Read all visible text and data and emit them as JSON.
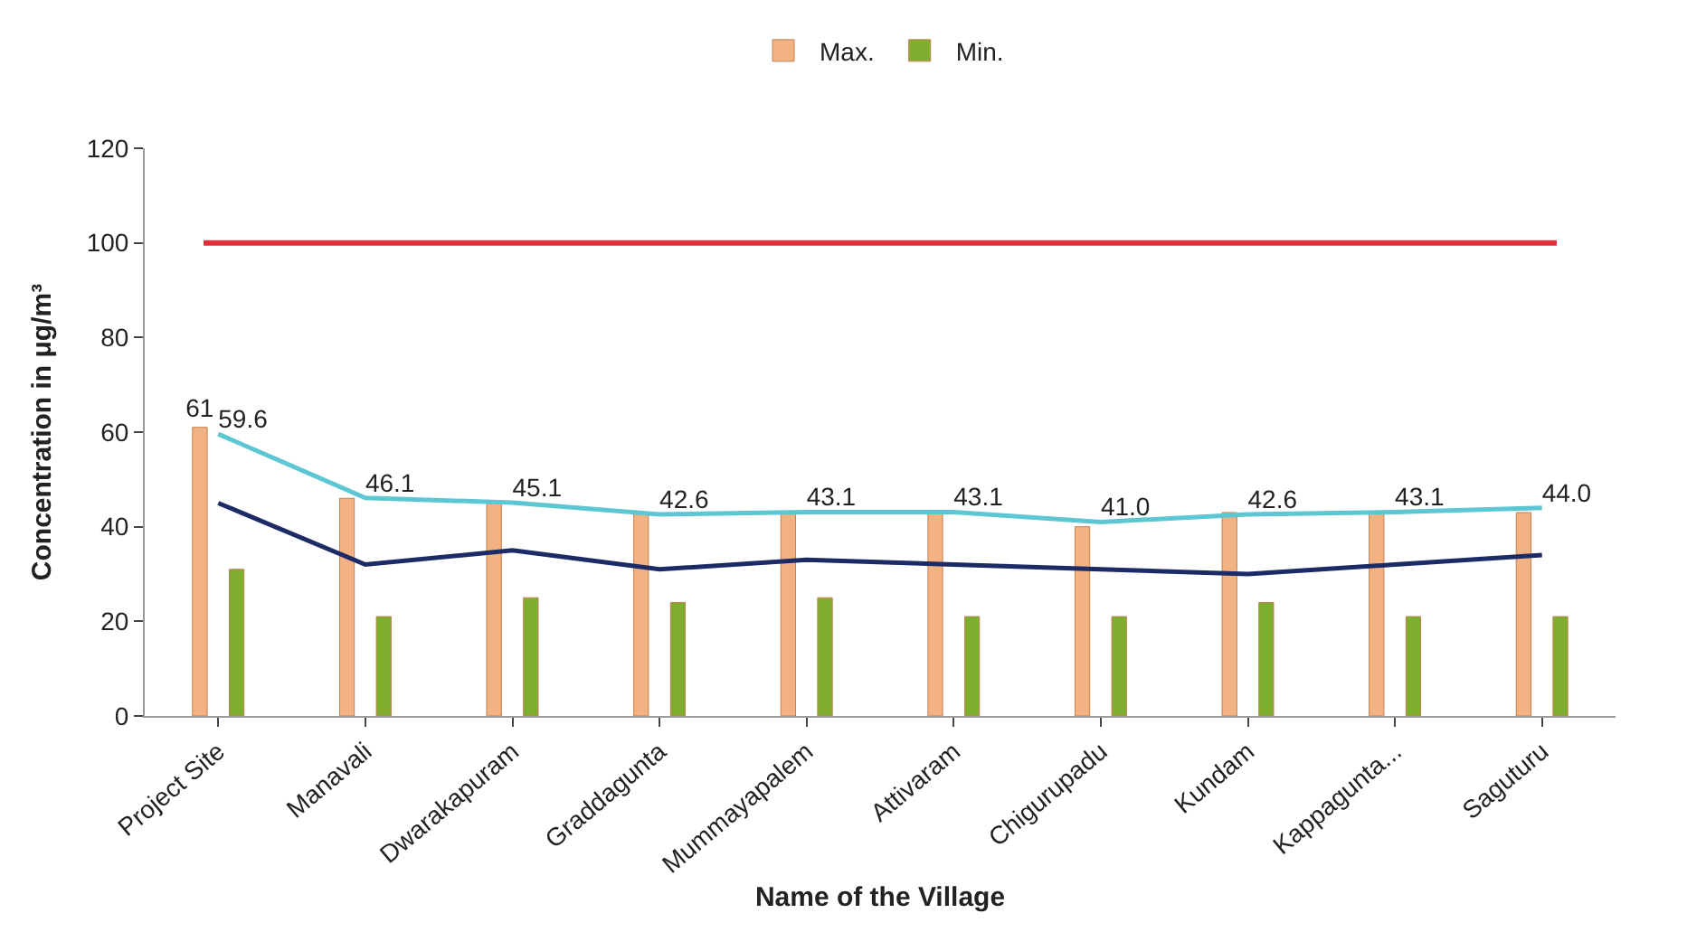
{
  "chart_data": {
    "type": "bar",
    "xlabel": "Name of the Village",
    "ylabel": "Concentration in μg/m³",
    "categories": [
      "Project Site",
      "Manavali",
      "Dwarakapuram",
      "Graddagunta",
      "Mummayapalem",
      "Attivaram",
      "Chigurupadu",
      "Kundam",
      "Kappagunta...",
      "Saguturu"
    ],
    "series": [
      {
        "name": "Max.",
        "color": "#f2b282",
        "values": [
          61,
          46,
          45,
          43,
          43,
          43,
          40,
          43,
          43,
          43
        ],
        "value_labels": [
          "61",
          null,
          null,
          null,
          null,
          null,
          null,
          null,
          null,
          null
        ]
      },
      {
        "name": "Min.",
        "color": "#7fae2e",
        "values": [
          31,
          21,
          25,
          24,
          25,
          21,
          21,
          24,
          21,
          21
        ]
      },
      {
        "type": "line",
        "color": "#5cc6d3",
        "values": [
          59.6,
          46.1,
          45.1,
          42.6,
          43.1,
          43.1,
          41.0,
          42.6,
          43.1,
          44.0
        ],
        "value_labels": [
          "59.6",
          "46.1",
          "45.1",
          "42.6",
          "43.1",
          "43.1",
          "41.0",
          "42.6",
          "43.1",
          "44.0"
        ]
      },
      {
        "type": "line",
        "color": "#1c2a66",
        "values": [
          45,
          32,
          35,
          31,
          33,
          32,
          31,
          30,
          32,
          34
        ]
      }
    ],
    "ref_lines": [
      {
        "axis": "y",
        "value": 100,
        "color": "#e0303a"
      }
    ],
    "ylim": [
      0,
      120
    ],
    "yticks": [
      0,
      20,
      40,
      60,
      80,
      100,
      120
    ],
    "legend": "top",
    "marker": "none",
    "line_style": "solid"
  }
}
